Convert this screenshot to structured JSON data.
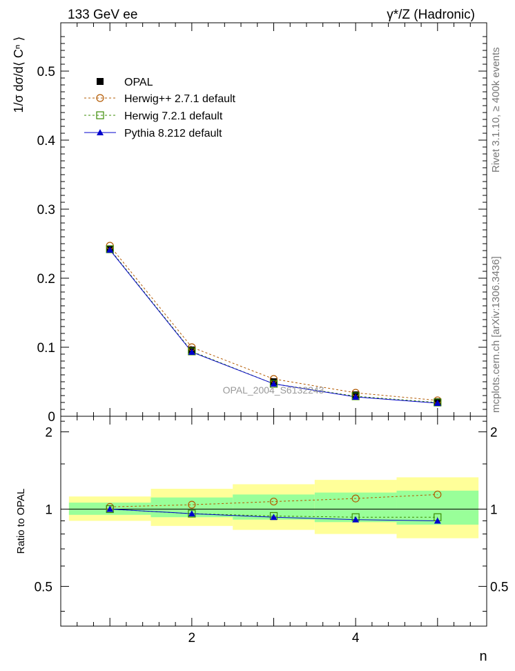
{
  "header": {
    "energy_label": "133 GeV ee",
    "process_label": "γ*/Z (Hadronic)"
  },
  "side_text": {
    "rivet": "Rivet 3.1.10, ≥ 400k events",
    "mcplots": "mcplots.cern.ch [arXiv:1306.3436]"
  },
  "watermark": "OPAL_2004_S6132243",
  "colors": {
    "data": "#000000",
    "herwigpp": "#b35900",
    "herwig7": "#3a8a00",
    "pythia": "#0000cc",
    "band_outer": "#ffff99",
    "band_inner": "#99ff99"
  },
  "chart_data": [
    {
      "panel": "main",
      "type": "line",
      "ylabel": "1/σ dσ/d⟨ Cⁿ ⟩",
      "xlabel": "",
      "xlim": [
        0.4,
        5.6
      ],
      "ylim": [
        0,
        0.57
      ],
      "yticks": [
        0,
        0.1,
        0.2,
        0.3,
        0.4,
        0.5
      ],
      "ytick_labels": [
        "0",
        "0.1",
        "0.2",
        "0.3",
        "0.4",
        "0.5"
      ],
      "x": [
        1,
        2,
        3,
        4,
        5
      ],
      "legend_position": "top-left",
      "series": [
        {
          "name": "OPAL",
          "marker": "filled-square",
          "style": "points",
          "values": [
            0.242,
            0.096,
            0.05,
            0.031,
            0.021
          ]
        },
        {
          "name": "Herwig++ 2.7.1 default",
          "marker": "open-circle",
          "style": "dashed",
          "values": [
            0.247,
            0.1,
            0.054,
            0.034,
            0.023
          ]
        },
        {
          "name": "Herwig 7.2.1 default",
          "marker": "open-square",
          "style": "dashed",
          "values": [
            0.242,
            0.094,
            0.047,
            0.029,
            0.02
          ]
        },
        {
          "name": "Pythia 8.212 default",
          "marker": "filled-triangle",
          "style": "solid",
          "values": [
            0.241,
            0.093,
            0.047,
            0.028,
            0.019
          ]
        }
      ]
    },
    {
      "panel": "ratio",
      "type": "line",
      "ylabel": "Ratio to OPAL",
      "xlabel": "n",
      "xlim": [
        0.4,
        5.6
      ],
      "ylim": [
        0.35,
        2.3
      ],
      "ytick_labels": [
        "0.5",
        "1",
        "2"
      ],
      "xtick_labels": [
        "2",
        "4"
      ],
      "x": [
        1,
        2,
        3,
        4,
        5
      ],
      "bands": {
        "edges": [
          0.5,
          1.5,
          2.5,
          3.5,
          4.5,
          5.5
        ],
        "outer_low": [
          0.9,
          0.86,
          0.83,
          0.8,
          0.77
        ],
        "outer_high": [
          1.12,
          1.2,
          1.25,
          1.3,
          1.33
        ],
        "inner_low": [
          0.95,
          0.93,
          0.91,
          0.89,
          0.87
        ],
        "inner_high": [
          1.06,
          1.11,
          1.14,
          1.16,
          1.18
        ]
      },
      "series": [
        {
          "name": "Herwig++ 2.7.1 default",
          "values": [
            1.02,
            1.04,
            1.07,
            1.1,
            1.14
          ]
        },
        {
          "name": "Herwig 7.2.1 default",
          "values": [
            1.0,
            0.96,
            0.94,
            0.93,
            0.93
          ]
        },
        {
          "name": "Pythia 8.212 default",
          "values": [
            1.0,
            0.96,
            0.93,
            0.91,
            0.9
          ]
        }
      ]
    }
  ]
}
